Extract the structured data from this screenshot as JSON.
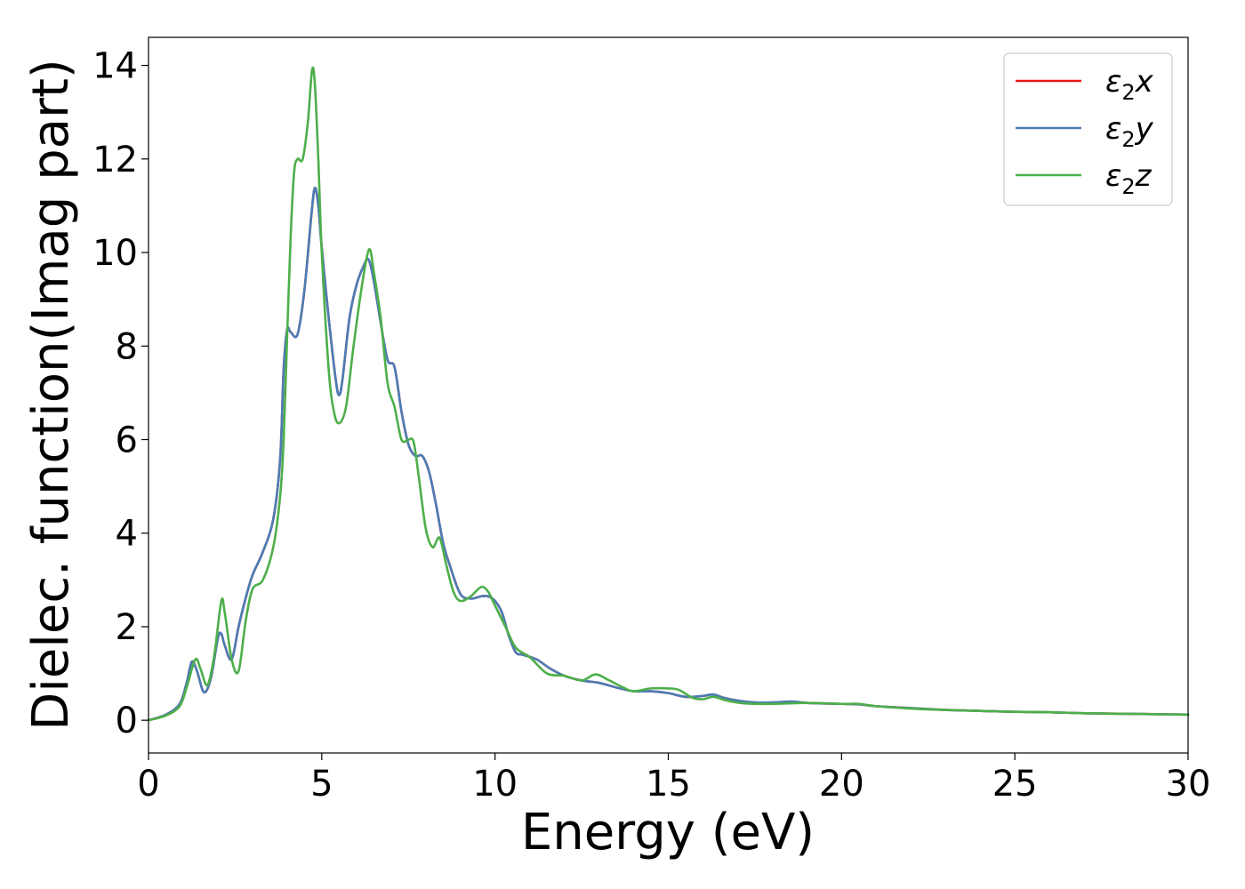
{
  "chart_data": {
    "type": "line",
    "title": "",
    "xlabel": "Energy (eV)",
    "ylabel": "Dielec. function(Imag part)",
    "xlim": [
      0,
      30
    ],
    "ylim": [
      -0.7,
      14.6
    ],
    "xticks": [
      0,
      5,
      10,
      15,
      20,
      25,
      30
    ],
    "yticks": [
      0,
      2,
      4,
      6,
      8,
      10,
      12,
      14
    ],
    "grid": false,
    "legend_position": "top-right",
    "series": [
      {
        "name": "ε₂x",
        "legend_base": "ε",
        "legend_sub": "2",
        "legend_suffix": "x",
        "color": "#e41a1c",
        "x": [
          0,
          0.5,
          0.9,
          1.1,
          1.25,
          1.4,
          1.6,
          1.8,
          2.0,
          2.1,
          2.2,
          2.4,
          2.6,
          2.8,
          3.0,
          3.3,
          3.6,
          3.8,
          3.9,
          4.0,
          4.1,
          4.3,
          4.5,
          4.7,
          4.8,
          4.9,
          5.0,
          5.2,
          5.4,
          5.5,
          5.6,
          5.8,
          6.0,
          6.2,
          6.35,
          6.5,
          6.7,
          6.9,
          7.1,
          7.3,
          7.5,
          7.7,
          7.9,
          8.1,
          8.3,
          8.5,
          8.7,
          9.0,
          9.3,
          9.6,
          9.8,
          10.0,
          10.2,
          10.4,
          10.6,
          10.8,
          11.2,
          11.6,
          12.0,
          12.5,
          13.0,
          13.5,
          14.0,
          14.5,
          15.0,
          15.5,
          16.0,
          16.3,
          16.6,
          17.0,
          17.5,
          18.0,
          18.6,
          19.0,
          20.0,
          20.5,
          21.0,
          22.0,
          23.0,
          24.0,
          25.0,
          26.0,
          27.0,
          28.0,
          29.0,
          30.0
        ],
        "y": [
          0,
          0.12,
          0.35,
          0.8,
          1.25,
          1.05,
          0.6,
          0.9,
          1.75,
          1.85,
          1.6,
          1.3,
          2.0,
          2.6,
          3.1,
          3.6,
          4.3,
          5.6,
          7.5,
          8.35,
          8.3,
          8.25,
          9.2,
          10.8,
          11.38,
          11.0,
          10.1,
          8.6,
          7.3,
          6.95,
          7.3,
          8.6,
          9.3,
          9.7,
          9.85,
          9.4,
          8.5,
          7.7,
          7.55,
          6.6,
          5.9,
          5.65,
          5.65,
          5.3,
          4.6,
          3.8,
          3.3,
          2.7,
          2.6,
          2.65,
          2.65,
          2.55,
          2.3,
          1.8,
          1.45,
          1.4,
          1.3,
          1.1,
          0.95,
          0.85,
          0.8,
          0.7,
          0.62,
          0.62,
          0.58,
          0.5,
          0.52,
          0.55,
          0.48,
          0.42,
          0.38,
          0.38,
          0.4,
          0.37,
          0.35,
          0.34,
          0.3,
          0.26,
          0.22,
          0.2,
          0.18,
          0.17,
          0.15,
          0.14,
          0.13,
          0.12
        ]
      },
      {
        "name": "ε₂y",
        "legend_base": "ε",
        "legend_sub": "2",
        "legend_suffix": "y",
        "color": "#4a7db5",
        "x": [
          0,
          0.5,
          0.9,
          1.1,
          1.25,
          1.4,
          1.6,
          1.8,
          2.0,
          2.1,
          2.2,
          2.4,
          2.6,
          2.8,
          3.0,
          3.3,
          3.6,
          3.8,
          3.9,
          4.0,
          4.1,
          4.3,
          4.5,
          4.7,
          4.8,
          4.9,
          5.0,
          5.2,
          5.4,
          5.5,
          5.6,
          5.8,
          6.0,
          6.2,
          6.35,
          6.5,
          6.7,
          6.9,
          7.1,
          7.3,
          7.5,
          7.7,
          7.9,
          8.1,
          8.3,
          8.5,
          8.7,
          9.0,
          9.3,
          9.6,
          9.8,
          10.0,
          10.2,
          10.4,
          10.6,
          10.8,
          11.2,
          11.6,
          12.0,
          12.5,
          13.0,
          13.5,
          14.0,
          14.5,
          15.0,
          15.5,
          16.0,
          16.3,
          16.6,
          17.0,
          17.5,
          18.0,
          18.6,
          19.0,
          20.0,
          20.5,
          21.0,
          22.0,
          23.0,
          24.0,
          25.0,
          26.0,
          27.0,
          28.0,
          29.0,
          30.0
        ],
        "y": [
          0,
          0.12,
          0.35,
          0.8,
          1.25,
          1.05,
          0.6,
          0.9,
          1.75,
          1.85,
          1.6,
          1.3,
          2.0,
          2.6,
          3.1,
          3.6,
          4.3,
          5.6,
          7.5,
          8.35,
          8.3,
          8.25,
          9.2,
          10.8,
          11.38,
          11.0,
          10.1,
          8.6,
          7.3,
          6.95,
          7.3,
          8.6,
          9.3,
          9.7,
          9.85,
          9.4,
          8.5,
          7.7,
          7.55,
          6.6,
          5.9,
          5.65,
          5.65,
          5.3,
          4.6,
          3.8,
          3.3,
          2.7,
          2.6,
          2.65,
          2.65,
          2.55,
          2.3,
          1.8,
          1.45,
          1.4,
          1.3,
          1.1,
          0.95,
          0.85,
          0.8,
          0.7,
          0.62,
          0.62,
          0.58,
          0.5,
          0.52,
          0.55,
          0.48,
          0.42,
          0.38,
          0.38,
          0.4,
          0.37,
          0.35,
          0.34,
          0.3,
          0.26,
          0.22,
          0.2,
          0.18,
          0.17,
          0.15,
          0.14,
          0.13,
          0.12
        ]
      },
      {
        "name": "ε₂z",
        "legend_base": "ε",
        "legend_sub": "2",
        "legend_suffix": "z",
        "color": "#4daf4a",
        "x": [
          0,
          0.5,
          0.9,
          1.1,
          1.35,
          1.5,
          1.7,
          1.9,
          2.1,
          2.2,
          2.4,
          2.6,
          2.8,
          3.0,
          3.3,
          3.6,
          3.8,
          3.9,
          4.0,
          4.1,
          4.2,
          4.3,
          4.45,
          4.6,
          4.72,
          4.8,
          4.9,
          5.0,
          5.2,
          5.35,
          5.5,
          5.7,
          5.9,
          6.1,
          6.3,
          6.4,
          6.5,
          6.7,
          6.9,
          7.1,
          7.3,
          7.5,
          7.65,
          7.8,
          8.0,
          8.2,
          8.4,
          8.6,
          8.8,
          9.0,
          9.3,
          9.6,
          9.8,
          10.0,
          10.3,
          10.6,
          11.0,
          11.5,
          12.0,
          12.5,
          12.9,
          13.3,
          13.7,
          14.0,
          14.5,
          15.0,
          15.3,
          15.7,
          16.0,
          16.3,
          16.7,
          17.2,
          18.0,
          19.0,
          20.0,
          20.5,
          21.0,
          22.0,
          23.0,
          24.0,
          25.0,
          26.0,
          27.0,
          28.0,
          29.0,
          30.0
        ],
        "y": [
          0,
          0.1,
          0.3,
          0.7,
          1.3,
          1.1,
          0.75,
          1.4,
          2.55,
          2.3,
          1.3,
          1.05,
          2.1,
          2.8,
          3.0,
          3.7,
          4.8,
          6.0,
          8.2,
          10.3,
          11.7,
          12.0,
          12.0,
          12.8,
          13.9,
          13.6,
          12.0,
          10.0,
          7.5,
          6.6,
          6.35,
          6.7,
          7.9,
          9.0,
          9.9,
          10.05,
          9.6,
          8.6,
          7.2,
          6.7,
          6.0,
          6.0,
          5.95,
          5.2,
          4.1,
          3.7,
          3.9,
          3.3,
          2.75,
          2.55,
          2.65,
          2.85,
          2.75,
          2.45,
          2.0,
          1.55,
          1.35,
          1.0,
          0.95,
          0.85,
          0.98,
          0.85,
          0.7,
          0.62,
          0.68,
          0.68,
          0.65,
          0.48,
          0.45,
          0.5,
          0.42,
          0.36,
          0.35,
          0.37,
          0.35,
          0.35,
          0.3,
          0.25,
          0.22,
          0.2,
          0.18,
          0.17,
          0.15,
          0.14,
          0.13,
          0.12
        ]
      }
    ]
  }
}
